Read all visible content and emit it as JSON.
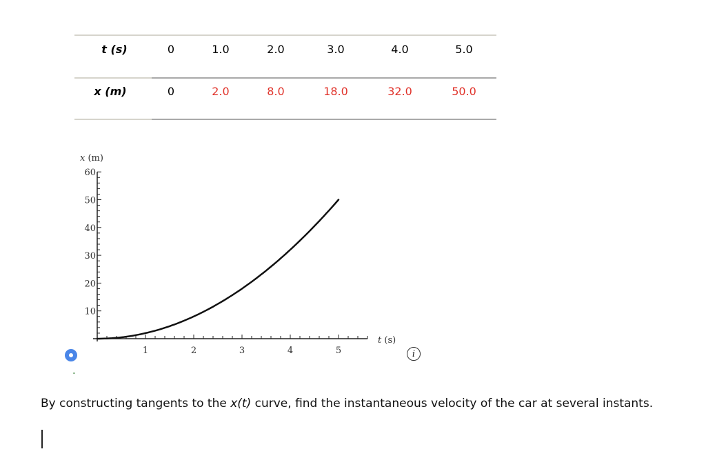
{
  "table": {
    "row_t": {
      "label_var": "t",
      "label_unit": "(s)",
      "values": [
        "0",
        "1.0",
        "2.0",
        "3.0",
        "4.0",
        "5.0"
      ]
    },
    "row_x": {
      "label_var": "x",
      "label_unit": "(m)",
      "values": [
        "0",
        "2.0",
        "8.0",
        "18.0",
        "32.0",
        "50.0"
      ]
    },
    "highlight_color": "#e0322a"
  },
  "chart_data": {
    "type": "line",
    "title": "",
    "xlabel": "t (s)",
    "ylabel": "x (m)",
    "x": [
      0,
      1,
      2,
      3,
      4,
      5
    ],
    "series": [
      {
        "name": "x(t)",
        "values": [
          0,
          2,
          8,
          18,
          32,
          50
        ]
      }
    ],
    "xlim": [
      0,
      5.6
    ],
    "ylim": [
      0,
      60
    ],
    "x_ticks": [
      "1",
      "2",
      "3",
      "4",
      "5"
    ],
    "y_ticks": [
      "10",
      "20",
      "30",
      "40",
      "50",
      "60"
    ],
    "x_minor_step": 0.2,
    "y_minor_step": 2,
    "grid": false,
    "legend": "none"
  },
  "info_icon": "i",
  "question": {
    "prefix": "By constructing tangents to the ",
    "math": "x(t)",
    "suffix": " curve, find the instantaneous velocity of the car at several instants."
  }
}
